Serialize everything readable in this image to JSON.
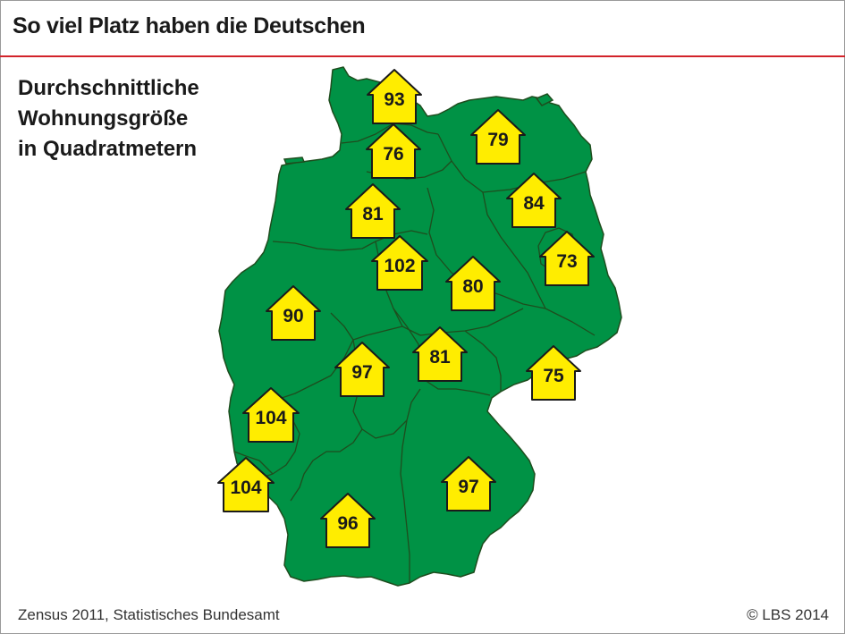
{
  "header": {
    "title": "So viel Platz haben die Deutschen"
  },
  "subtitle": {
    "lines": [
      "Durchschnittliche",
      "Wohnungsgröße",
      "in Quadratmetern"
    ]
  },
  "footer": {
    "source": "Zensus 2011, Statistisches Bundesamt",
    "copyright": "© LBS 2014"
  },
  "colors": {
    "map_fill": "#009245",
    "border": "#1e4d1e",
    "house_fill": "#ffed00",
    "accent_line": "#d2232a"
  },
  "regions": [
    {
      "id": "schleswig-holstein",
      "value": "93"
    },
    {
      "id": "hamburg",
      "value": "76"
    },
    {
      "id": "mecklenburg-vorpommern",
      "value": "79"
    },
    {
      "id": "niedersachsen",
      "value": "81"
    },
    {
      "id": "brandenburg",
      "value": "84"
    },
    {
      "id": "berlin",
      "value": "73"
    },
    {
      "id": "sachsen-anhalt",
      "value": "102"
    },
    {
      "id": "thueringen-north",
      "value": "80"
    },
    {
      "id": "nordrhein-westfalen",
      "value": "90"
    },
    {
      "id": "hessen",
      "value": "97"
    },
    {
      "id": "thueringen",
      "value": "81"
    },
    {
      "id": "sachsen",
      "value": "75"
    },
    {
      "id": "rheinland-pfalz",
      "value": "104"
    },
    {
      "id": "saarland",
      "value": "104"
    },
    {
      "id": "bayern",
      "value": "97"
    },
    {
      "id": "baden-wuerttemberg",
      "value": "96"
    }
  ]
}
